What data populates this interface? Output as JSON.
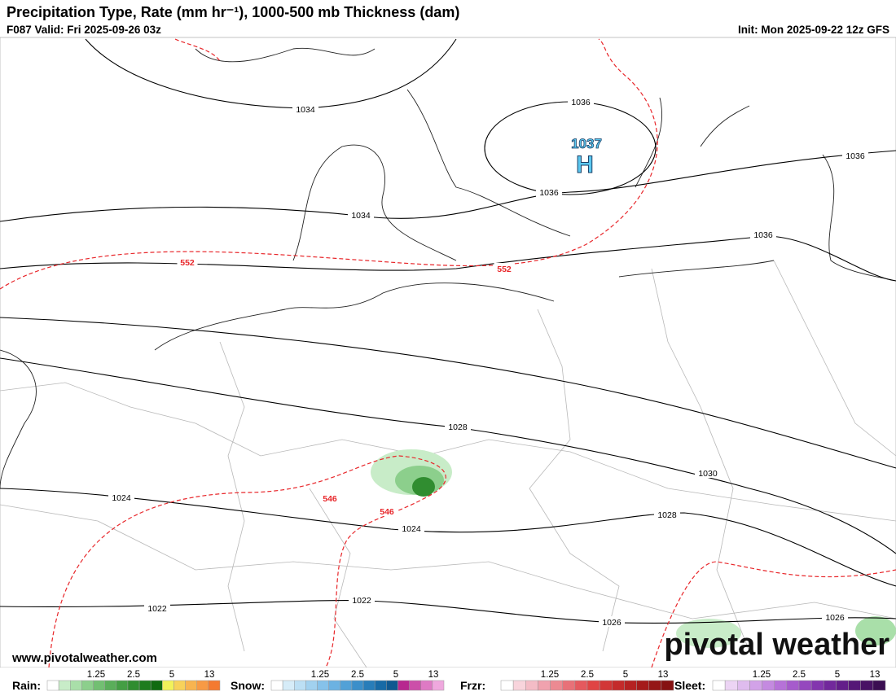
{
  "header": {
    "title": "Precipitation Type, Rate (mm hr⁻¹), 1000-500 mb Thickness (dam)",
    "valid": "F087 Valid: Fri 2025-09-26 03z",
    "init": "Init: Mon 2025-09-22 12z GFS"
  },
  "map": {
    "isobar_labels": [
      1034,
      1036,
      1036,
      1034,
      1036,
      1036,
      1028,
      1030,
      1028,
      1024,
      1024,
      1022,
      1022,
      1026,
      1026
    ],
    "thickness_labels": [
      552,
      552,
      546,
      546
    ],
    "high": {
      "pressure": 1037,
      "label": "H"
    }
  },
  "footer": {
    "website": "www.pivotalweather.com",
    "logo": "pivotal weather"
  },
  "legend": [
    {
      "label": "Rain:",
      "ticks": [
        1.25,
        2.5,
        5,
        13
      ],
      "colors": [
        "#ffffff",
        "#c8ecc8",
        "#a9dfa9",
        "#8ccf8c",
        "#72bf72",
        "#5aae5a",
        "#449e44",
        "#308d30",
        "#1e7c1e",
        "#116b11",
        "#f2f25a",
        "#f7d25a",
        "#f8b450",
        "#f89a45",
        "#f47a30"
      ]
    },
    {
      "label": "Snow:",
      "ticks": [
        1.25,
        2.5,
        5,
        13
      ],
      "colors": [
        "#ffffff",
        "#d6ecf8",
        "#bcdff4",
        "#a1d1ef",
        "#86c2ea",
        "#6cb2e2",
        "#52a1d7",
        "#3b8fca",
        "#287db9",
        "#176aa6",
        "#0f5890",
        "#b7288f",
        "#cc4fa9",
        "#de7ac4",
        "#efa8de"
      ]
    },
    {
      "label": "Frzr:",
      "ticks": [
        1.25,
        2.5,
        5,
        13
      ],
      "colors": [
        "#ffffff",
        "#f8d4dc",
        "#f4bcc6",
        "#f0a2ae",
        "#ec8a92",
        "#e87178",
        "#e5595e",
        "#e04444",
        "#d23636",
        "#c42b2b",
        "#b52222",
        "#a51b1b",
        "#951616",
        "#861212"
      ]
    },
    {
      "label": "Sleet:",
      "ticks": [
        1.25,
        2.5,
        5,
        13
      ],
      "colors": [
        "#ffffff",
        "#ecd4f4",
        "#dfbcee",
        "#d2a2e8",
        "#c48ae0",
        "#b672d8",
        "#a65bcc",
        "#9547be",
        "#8336ae",
        "#72289c",
        "#631e8a",
        "#551777",
        "#481264",
        "#3b0e52"
      ]
    }
  ]
}
